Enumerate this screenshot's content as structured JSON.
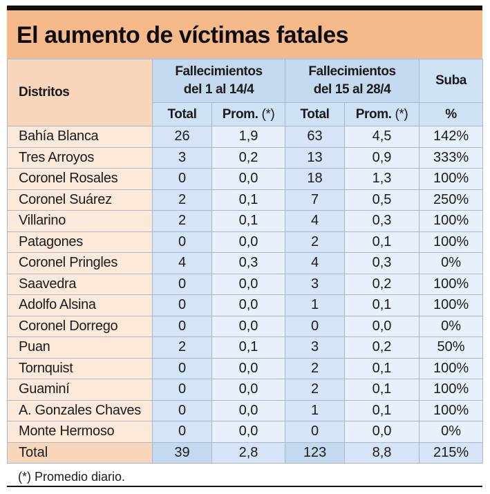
{
  "title": "El aumento de víctimas fatales",
  "headers": {
    "distritos": "Distritos",
    "group1_line1": "Fallecimientos",
    "group1_line2": "del 1 al 14/4",
    "group2_line1": "Fallecimientos",
    "group2_line2": "del 15 al 28/4",
    "suba": "Suba",
    "total": "Total",
    "prom": "Prom.",
    "prom_note": "(*)",
    "pct": "%"
  },
  "rows": [
    {
      "district": "Bahía Blanca",
      "t1": "26",
      "p1": "1,9",
      "t2": "63",
      "p2": "4,5",
      "suba": "142%"
    },
    {
      "district": "Tres Arroyos",
      "t1": "3",
      "p1": "0,2",
      "t2": "13",
      "p2": "0,9",
      "suba": "333%"
    },
    {
      "district": "Coronel Rosales",
      "t1": "0",
      "p1": "0,0",
      "t2": "18",
      "p2": "1,3",
      "suba": "100%"
    },
    {
      "district": "Coronel Suárez",
      "t1": "2",
      "p1": "0,1",
      "t2": "7",
      "p2": "0,5",
      "suba": "250%"
    },
    {
      "district": "Villarino",
      "t1": "2",
      "p1": "0,1",
      "t2": "4",
      "p2": "0,3",
      "suba": "100%"
    },
    {
      "district": "Patagones",
      "t1": "0",
      "p1": "0,0",
      "t2": "2",
      "p2": "0,1",
      "suba": "100%"
    },
    {
      "district": "Coronel Pringles",
      "t1": "4",
      "p1": "0,3",
      "t2": "4",
      "p2": "0,3",
      "suba": "0%"
    },
    {
      "district": "Saavedra",
      "t1": "0",
      "p1": "0,0",
      "t2": "3",
      "p2": "0,2",
      "suba": "100%"
    },
    {
      "district": "Adolfo Alsina",
      "t1": "0",
      "p1": "0,0",
      "t2": "1",
      "p2": "0,1",
      "suba": "100%"
    },
    {
      "district": "Coronel Dorrego",
      "t1": "0",
      "p1": "0,0",
      "t2": "0",
      "p2": "0,0",
      "suba": "0%"
    },
    {
      "district": "Puan",
      "t1": "2",
      "p1": "0,1",
      "t2": "3",
      "p2": "0,2",
      "suba": "50%"
    },
    {
      "district": "Tornquist",
      "t1": "0",
      "p1": "0,0",
      "t2": "2",
      "p2": "0,1",
      "suba": "100%"
    },
    {
      "district": "Guaminí",
      "t1": "0",
      "p1": "0,0",
      "t2": "2",
      "p2": "0,1",
      "suba": "100%"
    },
    {
      "district": "A. Gonzales Chaves",
      "t1": "0",
      "p1": "0,0",
      "t2": "1",
      "p2": "0,1",
      "suba": "100%"
    },
    {
      "district": "Monte Hermoso",
      "t1": "0",
      "p1": "0,0",
      "t2": "0",
      "p2": "0,0",
      "suba": "0%"
    }
  ],
  "total_row": {
    "district": "Total",
    "t1": "39",
    "p1": "2,8",
    "t2": "123",
    "p2": "8,8",
    "suba": "215%"
  },
  "footnote": "(*) Promedio diario.",
  "colors": {
    "title_band": "#f5b98a",
    "district_cells": "#fce9da",
    "header_blue": "#c4d9f0",
    "cell_blue": "#d5e5f7",
    "cell_light_blue": "#e8f1fb"
  },
  "chart_data": {
    "type": "table",
    "title": "El aumento de víctimas fatales",
    "columns": [
      "Distritos",
      "Fallecimientos del 1 al 14/4 Total",
      "Fallecimientos del 1 al 14/4 Prom. (*)",
      "Fallecimientos del 15 al 28/4 Total",
      "Fallecimientos del 15 al 28/4 Prom. (*)",
      "Suba %"
    ],
    "rows": [
      [
        "Bahía Blanca",
        26,
        1.9,
        63,
        4.5,
        142
      ],
      [
        "Tres Arroyos",
        3,
        0.2,
        13,
        0.9,
        333
      ],
      [
        "Coronel Rosales",
        0,
        0.0,
        18,
        1.3,
        100
      ],
      [
        "Coronel Suárez",
        2,
        0.1,
        7,
        0.5,
        250
      ],
      [
        "Villarino",
        2,
        0.1,
        4,
        0.3,
        100
      ],
      [
        "Patagones",
        0,
        0.0,
        2,
        0.1,
        100
      ],
      [
        "Coronel Pringles",
        4,
        0.3,
        4,
        0.3,
        0
      ],
      [
        "Saavedra",
        0,
        0.0,
        3,
        0.2,
        100
      ],
      [
        "Adolfo Alsina",
        0,
        0.0,
        1,
        0.1,
        100
      ],
      [
        "Coronel Dorrego",
        0,
        0.0,
        0,
        0.0,
        0
      ],
      [
        "Puan",
        2,
        0.1,
        3,
        0.2,
        50
      ],
      [
        "Tornquist",
        0,
        0.0,
        2,
        0.1,
        100
      ],
      [
        "Guaminí",
        0,
        0.0,
        2,
        0.1,
        100
      ],
      [
        "A. Gonzales Chaves",
        0,
        0.0,
        1,
        0.1,
        100
      ],
      [
        "Monte Hermoso",
        0,
        0.0,
        0,
        0.0,
        0
      ]
    ],
    "total": [
      "Total",
      39,
      2.8,
      123,
      8.8,
      215
    ],
    "footnote": "(*) Promedio diario."
  }
}
